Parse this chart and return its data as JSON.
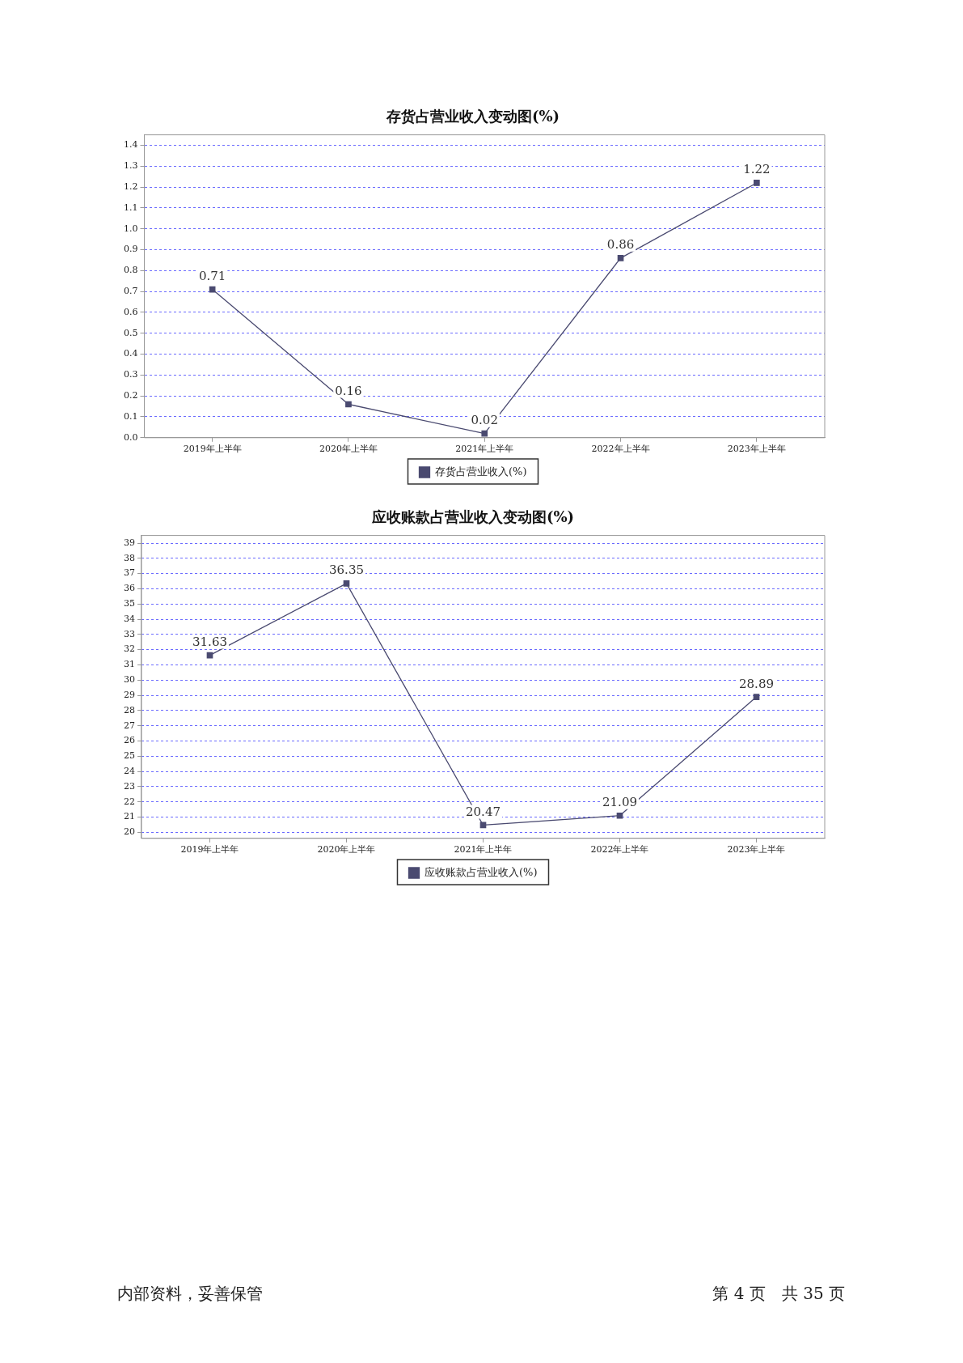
{
  "chart_data": [
    {
      "type": "line",
      "title": "存货占营业收入变动图(%)",
      "categories": [
        "2019年上半年",
        "2020年上半年",
        "2021年上半年",
        "2022年上半年",
        "2023年上半年"
      ],
      "series": [
        {
          "name": "存货占营业收入(%)",
          "color": "#4a4a70",
          "values": [
            0.71,
            0.16,
            0.02,
            0.86,
            1.22
          ]
        }
      ],
      "ylim": [
        0,
        1.45
      ],
      "yticks": [
        {
          "value": 0,
          "label": "0.0"
        },
        0.1,
        0.2,
        0.3,
        0.4,
        0.5,
        0.6,
        0.7,
        0.8,
        0.9,
        {
          "value": 1,
          "label": "1.0"
        },
        1.1,
        1.2,
        1.3,
        1.4
      ],
      "grid": "y",
      "legend": "bottom",
      "marker": "square",
      "line_style": "solid",
      "data_labels": true
    },
    {
      "type": "line",
      "title": "应收账款占营业收入变动图(%)",
      "categories": [
        "2019年上半年",
        "2020年上半年",
        "2021年上半年",
        "2022年上半年",
        "2023年上半年"
      ],
      "series": [
        {
          "name": "应收账款占营业收入(%)",
          "color": "#4a4a70",
          "values": [
            31.63,
            36.35,
            20.47,
            21.09,
            28.89
          ]
        }
      ],
      "ylim": [
        19.6,
        39.5
      ],
      "yticks": [
        20,
        21,
        22,
        23,
        24,
        25,
        26,
        27,
        28,
        29,
        30,
        31,
        32,
        33,
        34,
        35,
        36,
        37,
        38,
        39
      ],
      "grid": "y",
      "legend": "bottom",
      "marker": "square",
      "line_style": "solid",
      "data_labels": true,
      "annotations": [
        "内部资料，妥善保管",
        "第 4 页　共 35 页"
      ]
    }
  ]
}
